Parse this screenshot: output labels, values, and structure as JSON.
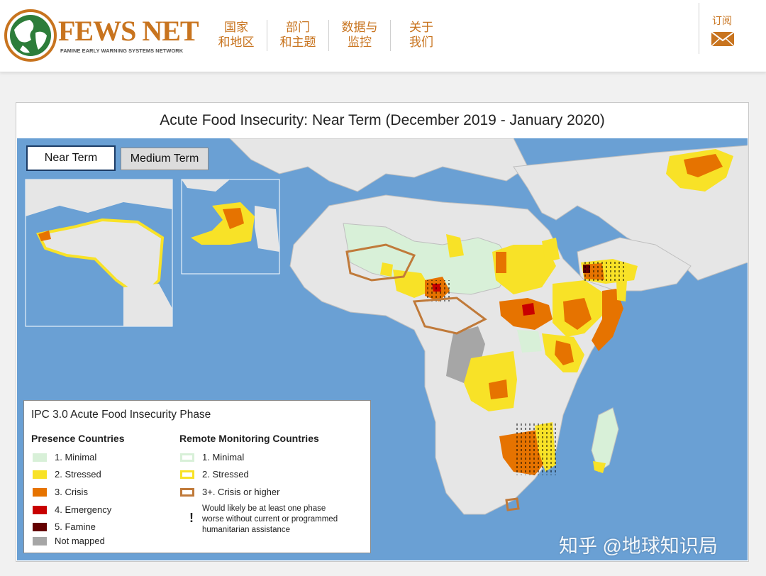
{
  "header": {
    "logo_title": "FEWS NET",
    "logo_subtitle": "FAMINE EARLY WARNING SYSTEMS NETWORK",
    "nav": [
      {
        "line1": "国家",
        "line2": "和地区"
      },
      {
        "line1": "部门",
        "line2": "和主题"
      },
      {
        "line1": "数据与",
        "line2": "监控"
      },
      {
        "line1": "关于",
        "line2": "我们"
      }
    ],
    "subscribe_label": "订阅",
    "subscribe_icon": "envelope-icon",
    "brand_color": "#c8741f"
  },
  "map": {
    "title": "Acute Food Insecurity: Near Term (December 2019 - January 2020)",
    "tabs": {
      "near_term": "Near Term",
      "medium_term": "Medium Term"
    },
    "selected_tab": "Near Term",
    "ocean_color": "#6aa0d4",
    "land_color": "#e6e6e6"
  },
  "legend": {
    "title": "IPC 3.0 Acute Food Insecurity Phase",
    "presence_heading": "Presence Countries",
    "remote_heading": "Remote Monitoring Countries",
    "presence": [
      {
        "label": "1. Minimal",
        "color": "#d8f0d8"
      },
      {
        "label": "2. Stressed",
        "color": "#f8e227"
      },
      {
        "label": "3. Crisis",
        "color": "#e67300"
      },
      {
        "label": "4. Emergency",
        "color": "#c80000"
      },
      {
        "label": "5. Famine",
        "color": "#640000"
      },
      {
        "label": "Not mapped",
        "color": "#a6a6a6"
      }
    ],
    "remote": [
      {
        "label": "1. Minimal",
        "fill": "#ffffff",
        "border": "#d8f0d8"
      },
      {
        "label": "2. Stressed",
        "fill": "#ffffff",
        "border": "#f8e227"
      },
      {
        "label": "3+. Crisis or higher",
        "fill": "#ffffff",
        "border": "#c07a3a"
      }
    ],
    "note_symbol": "!",
    "note_lines": [
      "Would likely be at least one phase",
      "worse without current or programmed",
      "humanitarian assistance"
    ]
  },
  "watermark": "知乎 @地球知识局"
}
